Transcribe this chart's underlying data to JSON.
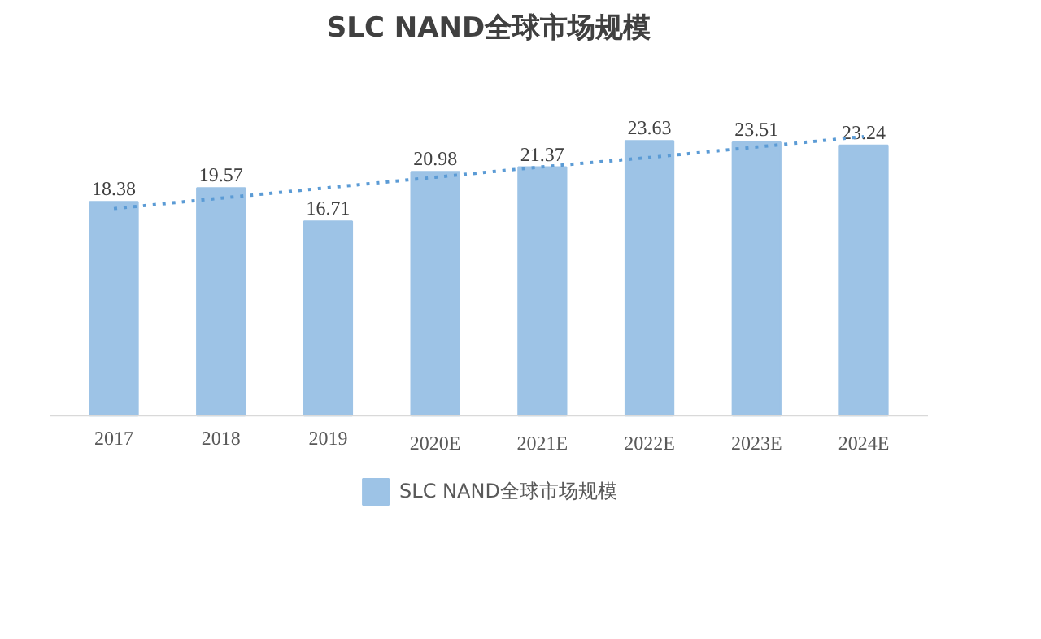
{
  "chart_data": {
    "type": "bar",
    "title": "SLC NAND全球市场规模",
    "categories": [
      "2017",
      "2018",
      "2019",
      "2020E",
      "2021E",
      "2022E",
      "2023E",
      "2024E"
    ],
    "series": [
      {
        "name": "SLC NAND全球市场规模",
        "color": "#9dc3e6",
        "values": [
          18.38,
          19.57,
          16.71,
          20.98,
          21.37,
          23.63,
          23.51,
          23.24
        ],
        "value_labels": [
          "18.38",
          "19.57",
          "16.71",
          "20.98",
          "21.37",
          "23.63",
          "23.51",
          "23.24"
        ]
      },
      {
        "type": "line",
        "color": "#5b9bd5",
        "line_style": "dotted",
        "values": [
          17.8,
          18.7,
          19.6,
          20.5,
          21.4,
          22.2,
          23.1,
          24.0
        ]
      }
    ],
    "legend": "bottom"
  }
}
